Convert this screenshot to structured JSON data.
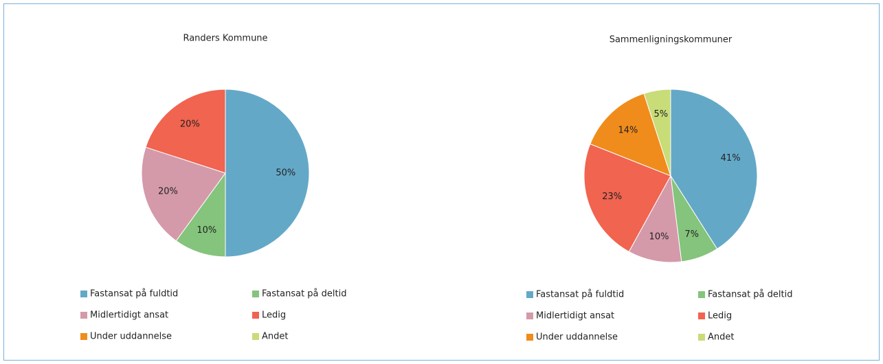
{
  "chart_data": [
    {
      "type": "pie",
      "title": "Randers Kommune",
      "categories": [
        "Fastansat på fuldtid",
        "Fastansat på deltid",
        "Midlertidigt ansat",
        "Ledig",
        "Under uddannelse",
        "Andet"
      ],
      "values": [
        50,
        10,
        20,
        20,
        0,
        0
      ],
      "value_labels": [
        "50%",
        "10%",
        "20%",
        "20%",
        null,
        null
      ],
      "colors": [
        "#64a8c8",
        "#84c47c",
        "#d49aaa",
        "#f06450",
        "#f08c1c",
        "#c8dc78"
      ]
    },
    {
      "type": "pie",
      "title": "Sammenligningskommuner",
      "categories": [
        "Fastansat på fuldtid",
        "Fastansat på deltid",
        "Midlertidigt ansat",
        "Ledig",
        "Under uddannelse",
        "Andet"
      ],
      "values": [
        41,
        7,
        10,
        23,
        14,
        5
      ],
      "value_labels": [
        "41%",
        "7%",
        "10%",
        "23%",
        "14%",
        "5%"
      ],
      "colors": [
        "#64a8c8",
        "#84c47c",
        "#d49aaa",
        "#f06450",
        "#f08c1c",
        "#c8dc78"
      ]
    }
  ]
}
